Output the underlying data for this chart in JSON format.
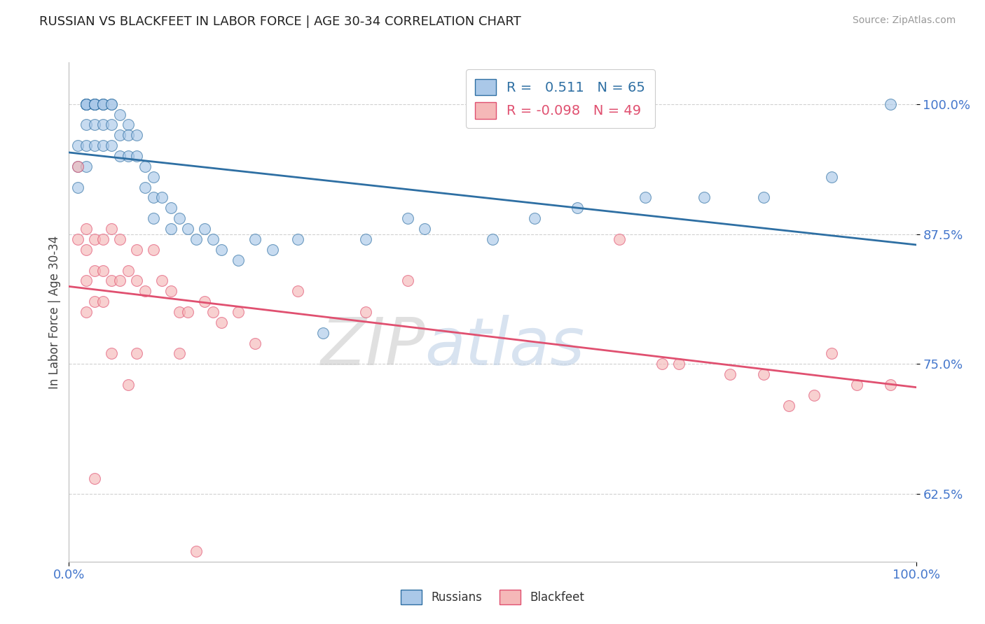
{
  "title": "RUSSIAN VS BLACKFEET IN LABOR FORCE | AGE 30-34 CORRELATION CHART",
  "source_text": "Source: ZipAtlas.com",
  "ylabel": "In Labor Force | Age 30-34",
  "xlim": [
    0.0,
    1.0
  ],
  "ylim": [
    0.56,
    1.04
  ],
  "xticks": [
    0.0,
    1.0
  ],
  "xticklabels": [
    "0.0%",
    "100.0%"
  ],
  "yticks": [
    0.625,
    0.75,
    0.875,
    1.0
  ],
  "yticklabels": [
    "62.5%",
    "75.0%",
    "87.5%",
    "100.0%"
  ],
  "grid_color": "#cccccc",
  "background_color": "#ffffff",
  "russian_color": "#aac8e8",
  "blackfeet_color": "#f5b8b8",
  "russian_line_color": "#2e6fa3",
  "blackfeet_line_color": "#e05070",
  "R_russian": 0.511,
  "N_russian": 65,
  "R_blackfeet": -0.098,
  "N_blackfeet": 49,
  "watermark_zip": "ZIP",
  "watermark_atlas": "atlas",
  "russians_x": [
    0.01,
    0.01,
    0.01,
    0.02,
    0.02,
    0.02,
    0.02,
    0.02,
    0.02,
    0.02,
    0.02,
    0.03,
    0.03,
    0.03,
    0.03,
    0.03,
    0.03,
    0.03,
    0.04,
    0.04,
    0.04,
    0.04,
    0.04,
    0.05,
    0.05,
    0.05,
    0.05,
    0.06,
    0.06,
    0.06,
    0.07,
    0.07,
    0.07,
    0.08,
    0.08,
    0.09,
    0.09,
    0.1,
    0.1,
    0.1,
    0.11,
    0.12,
    0.12,
    0.13,
    0.14,
    0.15,
    0.16,
    0.17,
    0.18,
    0.2,
    0.22,
    0.24,
    0.27,
    0.3,
    0.35,
    0.4,
    0.42,
    0.5,
    0.55,
    0.6,
    0.68,
    0.75,
    0.82,
    0.9,
    0.97
  ],
  "russians_y": [
    0.96,
    0.94,
    0.92,
    1.0,
    1.0,
    1.0,
    1.0,
    1.0,
    0.98,
    0.96,
    0.94,
    1.0,
    1.0,
    1.0,
    1.0,
    1.0,
    0.98,
    0.96,
    1.0,
    1.0,
    1.0,
    0.98,
    0.96,
    1.0,
    1.0,
    0.98,
    0.96,
    0.99,
    0.97,
    0.95,
    0.98,
    0.97,
    0.95,
    0.97,
    0.95,
    0.94,
    0.92,
    0.93,
    0.91,
    0.89,
    0.91,
    0.9,
    0.88,
    0.89,
    0.88,
    0.87,
    0.88,
    0.87,
    0.86,
    0.85,
    0.87,
    0.86,
    0.87,
    0.78,
    0.87,
    0.89,
    0.88,
    0.87,
    0.89,
    0.9,
    0.91,
    0.91,
    0.91,
    0.93,
    1.0
  ],
  "blackfeet_x": [
    0.01,
    0.01,
    0.02,
    0.02,
    0.02,
    0.02,
    0.03,
    0.03,
    0.03,
    0.04,
    0.04,
    0.04,
    0.05,
    0.05,
    0.06,
    0.06,
    0.07,
    0.08,
    0.08,
    0.09,
    0.1,
    0.11,
    0.12,
    0.13,
    0.14,
    0.16,
    0.18,
    0.2,
    0.22,
    0.27,
    0.35,
    0.4,
    0.65,
    0.7,
    0.72,
    0.78,
    0.82,
    0.85,
    0.88,
    0.9,
    0.93,
    0.97,
    0.13,
    0.17,
    0.08,
    0.05,
    0.03,
    0.07,
    0.15
  ],
  "blackfeet_y": [
    0.94,
    0.87,
    0.88,
    0.86,
    0.83,
    0.8,
    0.87,
    0.84,
    0.81,
    0.87,
    0.84,
    0.81,
    0.88,
    0.83,
    0.87,
    0.83,
    0.84,
    0.86,
    0.83,
    0.82,
    0.86,
    0.83,
    0.82,
    0.8,
    0.8,
    0.81,
    0.79,
    0.8,
    0.77,
    0.82,
    0.8,
    0.83,
    0.87,
    0.75,
    0.75,
    0.74,
    0.74,
    0.71,
    0.72,
    0.76,
    0.73,
    0.73,
    0.76,
    0.8,
    0.76,
    0.76,
    0.64,
    0.73,
    0.57
  ]
}
